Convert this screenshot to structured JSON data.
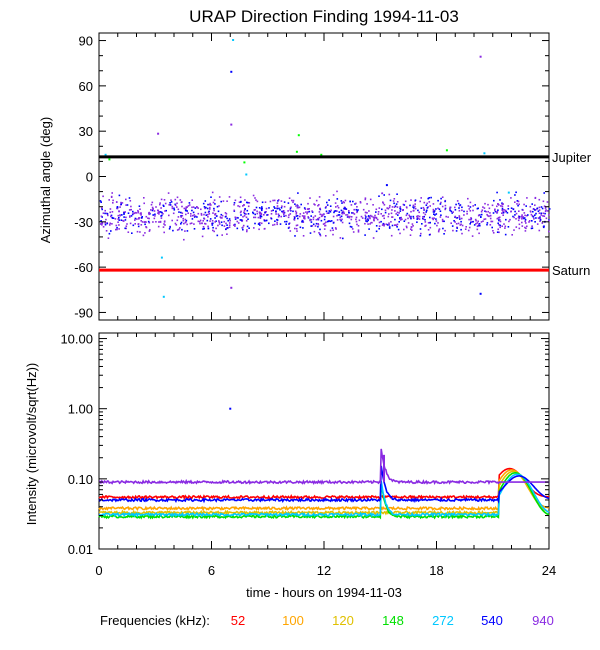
{
  "chart_data": [
    {
      "type": "scatter",
      "title": "URAP Direction Finding  1994-11-03",
      "ylabel": "Azimuthal angle (deg)",
      "xlim": [
        0,
        24
      ],
      "ylim": [
        -95,
        95
      ],
      "yticks": [
        90,
        60,
        30,
        0,
        -30,
        -60,
        -90
      ],
      "reference_lines": [
        {
          "name": "Jupiter",
          "value": 13,
          "color": "#000000"
        },
        {
          "name": "Saturn",
          "value": -62,
          "color": "#ff0000"
        }
      ],
      "main_band": {
        "center": -25,
        "spread": 6,
        "color": "#8a2be2"
      },
      "outliers": [
        {
          "x": 0.3,
          "y": 15,
          "color": "#00c8ff"
        },
        {
          "x": 0.5,
          "y": 12,
          "color": "#00ff00"
        },
        {
          "x": 3.1,
          "y": 29,
          "color": "#8a2be2"
        },
        {
          "x": 3.3,
          "y": -53,
          "color": "#00c8ff"
        },
        {
          "x": 3.4,
          "y": -79,
          "color": "#00c8ff"
        },
        {
          "x": 7.0,
          "y": 70,
          "color": "#0000ff"
        },
        {
          "x": 7.1,
          "y": 91,
          "color": "#00c8ff"
        },
        {
          "x": 7.0,
          "y": 35,
          "color": "#8a2be2"
        },
        {
          "x": 7.0,
          "y": -73,
          "color": "#8a2be2"
        },
        {
          "x": 7.7,
          "y": 10,
          "color": "#00ff00"
        },
        {
          "x": 7.8,
          "y": 2,
          "color": "#00c8ff"
        },
        {
          "x": 10.6,
          "y": 28,
          "color": "#00ff00"
        },
        {
          "x": 10.5,
          "y": 17,
          "color": "#00ff00"
        },
        {
          "x": 11.8,
          "y": 15,
          "color": "#00ff00"
        },
        {
          "x": 15.3,
          "y": -5,
          "color": "#0000ff"
        },
        {
          "x": 18.5,
          "y": 18,
          "color": "#00ff00"
        },
        {
          "x": 20.3,
          "y": 80,
          "color": "#8a2be2"
        },
        {
          "x": 20.3,
          "y": -77,
          "color": "#0000ff"
        },
        {
          "x": 20.5,
          "y": 16,
          "color": "#00c8ff"
        },
        {
          "x": 21.8,
          "y": -10,
          "color": "#00c8ff"
        }
      ]
    },
    {
      "type": "line",
      "ylabel": "Intensity (microvolt/sqrt(Hz))",
      "xlabel": "time - hours on 1994-11-03",
      "xlim": [
        0,
        24
      ],
      "xticks": [
        0,
        6,
        12,
        18,
        24
      ],
      "ylim": [
        0.01,
        12
      ],
      "yscale": "log",
      "yticks": [
        {
          "value": 10,
          "label": "10.00"
        },
        {
          "value": 1,
          "label": "1.00"
        },
        {
          "value": 0.1,
          "label": "0.10"
        },
        {
          "value": 0.01,
          "label": "0.01"
        }
      ],
      "series": [
        {
          "freq": "52",
          "color": "#ff0000",
          "base": 0.055
        },
        {
          "freq": "100",
          "color": "#ffa500",
          "base": 0.038
        },
        {
          "freq": "120",
          "color": "#e0c000",
          "base": 0.033
        },
        {
          "freq": "148",
          "color": "#00e000",
          "base": 0.029
        },
        {
          "freq": "272",
          "color": "#00c8ff",
          "base": 0.031
        },
        {
          "freq": "540",
          "color": "#0000ff",
          "base": 0.05
        },
        {
          "freq": "940",
          "color": "#8a2be2",
          "base": 0.09
        }
      ],
      "legend": {
        "label": "Frequencies (kHz):",
        "placement": "bottom"
      }
    }
  ]
}
